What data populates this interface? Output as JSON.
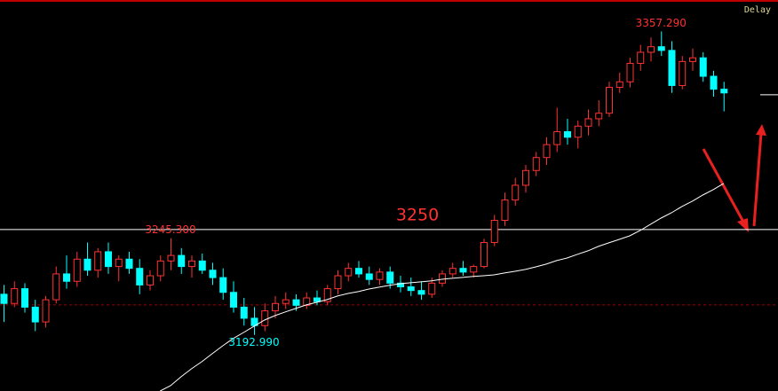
{
  "chart_data": {
    "type": "candlestick",
    "status": "Delay",
    "ylim": [
      3162.6,
      3374.3
    ],
    "up_color": "#ff3232",
    "down_color": "#00ffff",
    "ohlc": [
      [
        3215,
        3220,
        3200,
        3210
      ],
      [
        3210,
        3222,
        3208,
        3218
      ],
      [
        3218,
        3221,
        3205,
        3208
      ],
      [
        3208,
        3212,
        3195,
        3200
      ],
      [
        3200,
        3214,
        3197,
        3212
      ],
      [
        3212,
        3230,
        3210,
        3226
      ],
      [
        3226,
        3236,
        3218,
        3222
      ],
      [
        3222,
        3238,
        3219,
        3234
      ],
      [
        3234,
        3243,
        3225,
        3228
      ],
      [
        3228,
        3240,
        3224,
        3238
      ],
      [
        3238,
        3243,
        3226,
        3230
      ],
      [
        3230,
        3236,
        3222,
        3234
      ],
      [
        3234,
        3238,
        3226,
        3229
      ],
      [
        3229,
        3234,
        3215,
        3220
      ],
      [
        3220,
        3228,
        3217,
        3225
      ],
      [
        3225,
        3236,
        3222,
        3233
      ],
      [
        3233,
        3245.3,
        3228,
        3236
      ],
      [
        3236,
        3240,
        3226,
        3230
      ],
      [
        3230,
        3236,
        3224,
        3233
      ],
      [
        3233,
        3237,
        3226,
        3228
      ],
      [
        3228,
        3232,
        3220,
        3224
      ],
      [
        3224,
        3229,
        3212,
        3216
      ],
      [
        3216,
        3222,
        3205,
        3208
      ],
      [
        3208,
        3213,
        3198,
        3202
      ],
      [
        3202,
        3208,
        3192.99,
        3198
      ],
      [
        3198,
        3210,
        3195,
        3206
      ],
      [
        3206,
        3214,
        3202,
        3210
      ],
      [
        3210,
        3216,
        3207,
        3212
      ],
      [
        3212,
        3215,
        3206,
        3209
      ],
      [
        3209,
        3216,
        3207,
        3213
      ],
      [
        3213,
        3217,
        3209,
        3211
      ],
      [
        3211,
        3220,
        3209,
        3218
      ],
      [
        3218,
        3228,
        3215,
        3225
      ],
      [
        3225,
        3232,
        3222,
        3229
      ],
      [
        3229,
        3233,
        3224,
        3226
      ],
      [
        3226,
        3230,
        3220,
        3223
      ],
      [
        3223,
        3229,
        3220,
        3227
      ],
      [
        3227,
        3230,
        3218,
        3221
      ],
      [
        3221,
        3225,
        3216,
        3219
      ],
      [
        3219,
        3224,
        3214,
        3217
      ],
      [
        3217,
        3222,
        3212,
        3215
      ],
      [
        3215,
        3224,
        3213,
        3221
      ],
      [
        3221,
        3228,
        3219,
        3226
      ],
      [
        3226,
        3232,
        3224,
        3229
      ],
      [
        3229,
        3233,
        3225,
        3227
      ],
      [
        3227,
        3231,
        3224,
        3230
      ],
      [
        3230,
        3245,
        3229,
        3243
      ],
      [
        3243,
        3258,
        3241,
        3255
      ],
      [
        3255,
        3270,
        3252,
        3266
      ],
      [
        3266,
        3278,
        3263,
        3274
      ],
      [
        3274,
        3285,
        3270,
        3282
      ],
      [
        3282,
        3292,
        3279,
        3289
      ],
      [
        3289,
        3300,
        3285,
        3296
      ],
      [
        3296,
        3316,
        3292,
        3303
      ],
      [
        3303,
        3310,
        3296,
        3300
      ],
      [
        3300,
        3309,
        3294,
        3306
      ],
      [
        3306,
        3315,
        3301,
        3310
      ],
      [
        3310,
        3320,
        3306,
        3313
      ],
      [
        3313,
        3330,
        3311,
        3327
      ],
      [
        3327,
        3335,
        3324,
        3330
      ],
      [
        3330,
        3343,
        3327,
        3340
      ],
      [
        3340,
        3350,
        3336,
        3346
      ],
      [
        3346,
        3354,
        3341,
        3349
      ],
      [
        3349,
        3357.29,
        3344,
        3347
      ],
      [
        3347,
        3352,
        3324,
        3328
      ],
      [
        3328,
        3344,
        3326,
        3341
      ],
      [
        3341,
        3348,
        3336,
        3343
      ],
      [
        3343,
        3346,
        3330,
        3333
      ],
      [
        3333,
        3336,
        3322,
        3326
      ],
      [
        3326,
        3330,
        3314,
        3324
      ]
    ],
    "moving_average": {
      "color": "#ffffff",
      "values": [
        null,
        null,
        null,
        null,
        null,
        null,
        null,
        null,
        null,
        null,
        null,
        null,
        null,
        null,
        null,
        3162.6,
        3165.5,
        3170.3,
        3174.6,
        3178.5,
        3182.8,
        3187.1,
        3191.0,
        3194.3,
        3197.7,
        3201.0,
        3203.4,
        3205.4,
        3207.3,
        3209.2,
        3210.6,
        3212.1,
        3214.0,
        3215.4,
        3216.4,
        3217.8,
        3218.8,
        3219.8,
        3220.7,
        3221.2,
        3221.7,
        3222.2,
        3223.1,
        3223.6,
        3224.1,
        3224.6,
        3225.0,
        3225.5,
        3226.5,
        3227.4,
        3228.4,
        3229.8,
        3231.3,
        3233.2,
        3234.6,
        3236.6,
        3238.5,
        3240.9,
        3242.8,
        3244.7,
        3246.6,
        3249.5,
        3252.9,
        3256.2,
        3259.1,
        3262.5,
        3265.4,
        3268.7,
        3271.6,
        3275.0
      ]
    },
    "annotations": [
      {
        "value": 3357.29,
        "label": "3357.290",
        "color": "#ff3232"
      },
      {
        "value": 3245.3,
        "label": "3245.300",
        "color": "#ff3232"
      },
      {
        "value": 3192.99,
        "label": "3192.990",
        "color": "#00ffff"
      }
    ],
    "reference_lines": [
      {
        "value": 3250,
        "label": "3250",
        "color": "#ffffff",
        "label_color": "#ff3232"
      },
      {
        "value": 3209.2,
        "color": "#a00000",
        "dashed": true
      }
    ],
    "price_marker": {
      "value": 3323,
      "color": "#ffffff"
    }
  }
}
